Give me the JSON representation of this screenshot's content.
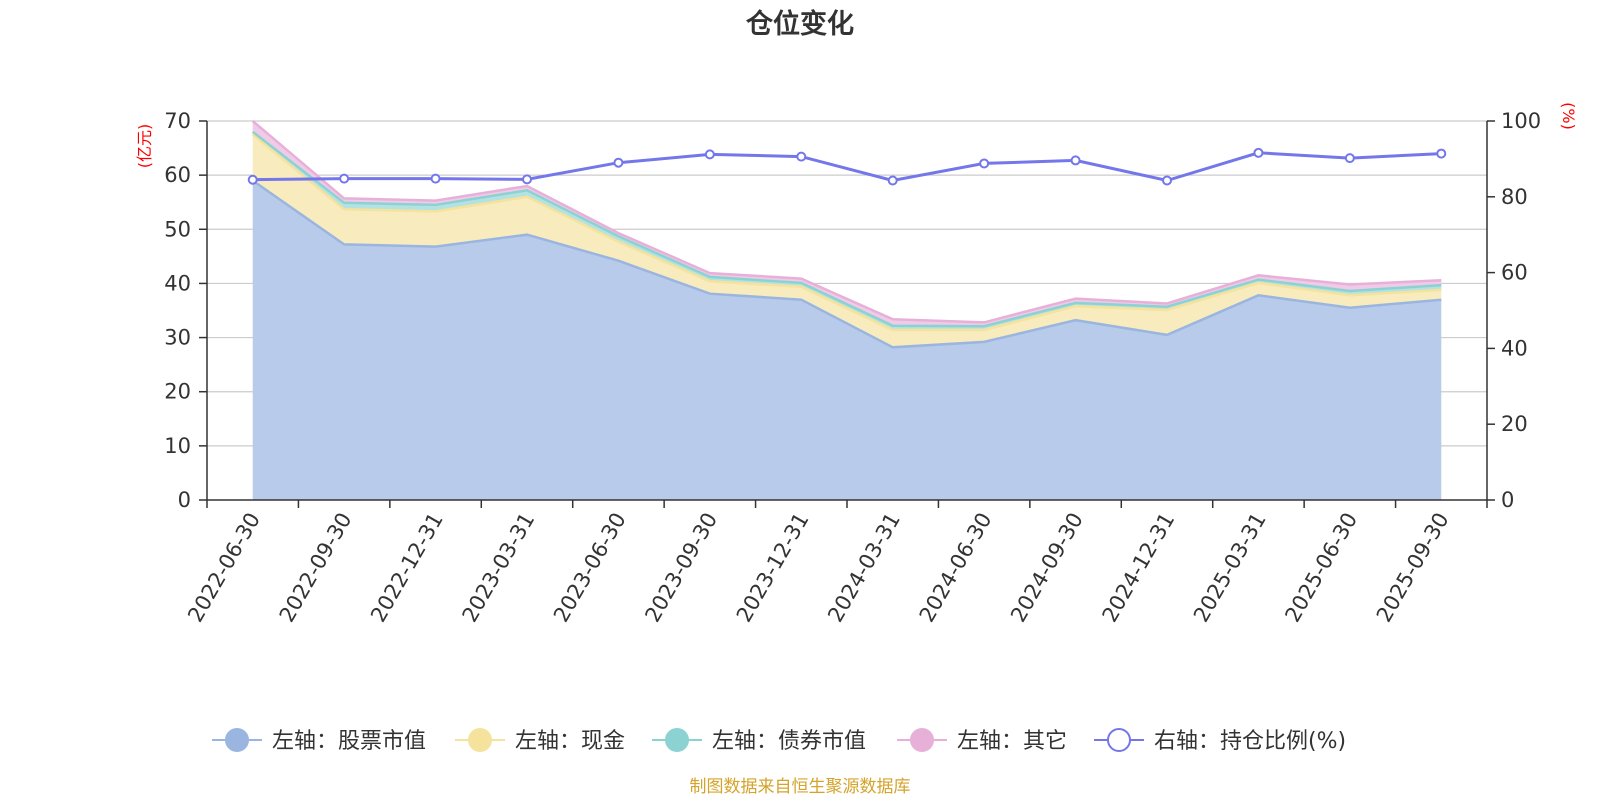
{
  "chart_data": {
    "type": "area",
    "title": "仓位变化",
    "categories": [
      "2022-06-30",
      "2022-09-30",
      "2022-12-31",
      "2023-03-31",
      "2023-06-30",
      "2023-09-30",
      "2023-12-31",
      "2024-03-31",
      "2024-06-30",
      "2024-09-30",
      "2024-12-31",
      "2025-03-31",
      "2025-06-30",
      "2025-09-30"
    ],
    "y_left": {
      "unit": "(亿元)",
      "min": 0,
      "max": 70,
      "ticks": [
        "0",
        "10",
        "20",
        "30",
        "40",
        "50",
        "60",
        "70"
      ]
    },
    "y_right": {
      "unit": "(%)",
      "min": 0,
      "max": 100,
      "ticks": [
        "0",
        "20",
        "40",
        "60",
        "80",
        "100"
      ]
    },
    "stacked_series": [
      {
        "name": "左轴：股票市值",
        "color": "#9ab5e0",
        "fill": "#b8cbea",
        "values": [
          59.0,
          47.2,
          46.8,
          49.0,
          44.2,
          38.1,
          37.0,
          28.2,
          29.2,
          33.2,
          30.5,
          37.8,
          35.5,
          37.0
        ]
      },
      {
        "name": "左轴：现金",
        "color": "#f5e29c",
        "fill": "#f8ebbd",
        "values": [
          8.5,
          6.5,
          6.5,
          7.0,
          3.5,
          2.3,
          2.4,
          3.2,
          2.2,
          2.6,
          4.6,
          2.3,
          2.3,
          1.8
        ]
      },
      {
        "name": "左轴：债券市值",
        "color": "#8dd2d2",
        "fill": "#b3e2e2",
        "values": [
          0.5,
          1.2,
          1.2,
          1.2,
          1.0,
          0.8,
          0.7,
          0.8,
          0.7,
          0.6,
          0.6,
          0.6,
          0.8,
          0.9
        ]
      },
      {
        "name": "左轴：其它",
        "color": "#e7b0d8",
        "fill": "#f0cbe7",
        "values": [
          2.0,
          0.8,
          0.8,
          0.8,
          0.6,
          0.7,
          0.8,
          1.2,
          0.7,
          0.8,
          0.6,
          0.8,
          1.2,
          0.9
        ]
      }
    ],
    "line_series": {
      "name": "右轴：持仓比例(%)",
      "axis": "right",
      "color": "#7377ea",
      "values": [
        84.5,
        84.8,
        84.8,
        84.6,
        89.0,
        91.2,
        90.6,
        84.3,
        88.8,
        89.6,
        84.3,
        91.6,
        90.2,
        91.4
      ]
    },
    "legend_position": "bottom",
    "grid": true,
    "source": "制图数据来自恒生聚源数据库"
  }
}
